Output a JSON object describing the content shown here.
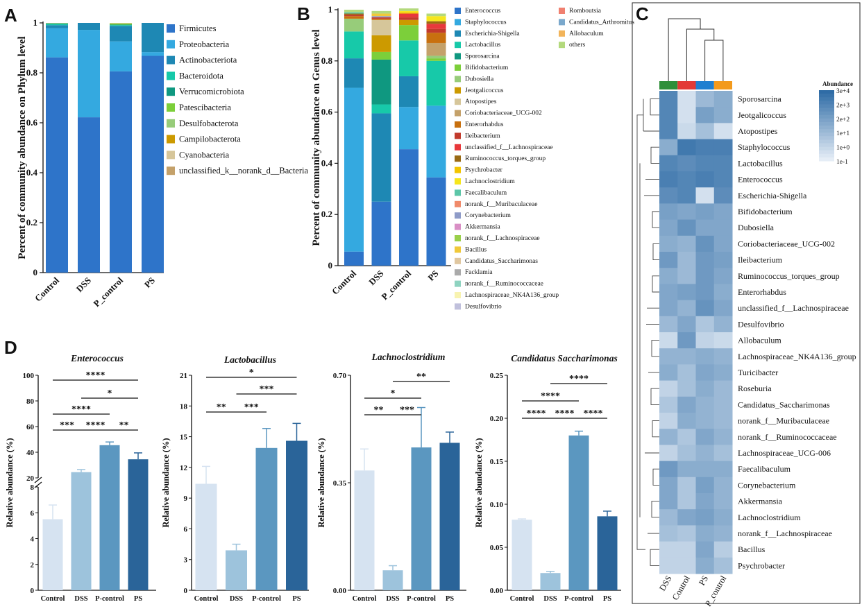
{
  "panels": {
    "A": "A",
    "B": "B",
    "C": "C",
    "D": "D"
  },
  "colors": {
    "firmicutes": "#2e74c9",
    "proteobacteria": "#34a9e0",
    "actinobacteriota": "#1e88b4",
    "bacteroidota": "#17c9a9",
    "verrucomicrobiota": "#0f9880",
    "patescibacteria": "#7ccf3a",
    "desulfobacterota": "#97cc7a",
    "campilobacterota": "#cc9a00",
    "cyanobacteria": "#d6c69a",
    "unclassified": "#c4a16a",
    "bar1": "#d6e3f1",
    "bar2": "#9dc3dc",
    "bar3": "#5b97c0",
    "bar4": "#2a6499",
    "heat_low": "#e5edf6",
    "heat_high": "#2f6ca6"
  },
  "chart_data": [
    {
      "id": "A",
      "type": "bar",
      "stacked": true,
      "title": "",
      "ylabel": "Percent of community abundance on Phylum level",
      "xlabel": "",
      "ylim": [
        0,
        1
      ],
      "yticks": [
        "0",
        "0.2",
        "0.4",
        "0.6",
        "0.8",
        "1"
      ],
      "categories": [
        "Control",
        "DSS",
        "P_control",
        "PS"
      ],
      "series": [
        {
          "name": "Firmicutes",
          "color": "#2e74c9",
          "values": [
            0.862,
            0.622,
            0.806,
            0.868
          ]
        },
        {
          "name": "Proteobacteria",
          "color": "#34a9e0",
          "values": [
            0.117,
            0.35,
            0.12,
            0.015
          ]
        },
        {
          "name": "Actinobacteriota",
          "color": "#1e88b4",
          "values": [
            0.012,
            0.028,
            0.062,
            0.117
          ]
        },
        {
          "name": "Bacteroidota",
          "color": "#17c9a9",
          "values": [
            0.004,
            0,
            0.003,
            0
          ]
        },
        {
          "name": "Verrucomicrobiota",
          "color": "#0f9880",
          "values": [
            0.003,
            0,
            0.002,
            0
          ]
        },
        {
          "name": "Patescibacteria",
          "color": "#7ccf3a",
          "values": [
            0.001,
            0,
            0.004,
            0
          ]
        },
        {
          "name": "Desulfobacterota",
          "color": "#97cc7a",
          "values": [
            0.001,
            0,
            0.001,
            0
          ]
        },
        {
          "name": "Campilobacterota",
          "color": "#cc9a00",
          "values": [
            0,
            0,
            0.001,
            0
          ]
        },
        {
          "name": "Cyanobacteria",
          "color": "#d6c69a",
          "values": [
            0,
            0,
            0.001,
            0
          ]
        },
        {
          "name": "unclassified_k__norank_d__Bacteria",
          "color": "#c4a16a",
          "values": [
            0,
            0,
            0,
            0
          ]
        }
      ]
    },
    {
      "id": "B",
      "type": "bar",
      "stacked": true,
      "title": "",
      "ylabel": "Percent of community abundance on Genus level",
      "xlabel": "",
      "ylim": [
        0,
        1
      ],
      "yticks": [
        "0",
        "0.2",
        "0.4",
        "0.6",
        "0.8",
        "1"
      ],
      "categories": [
        "Control",
        "DSS",
        "P_control",
        "PS"
      ],
      "series": [
        {
          "name": "Enterococcus",
          "color": "#2e74c9",
          "values": [
            0.055,
            0.25,
            0.455,
            0.345
          ]
        },
        {
          "name": "Staphylococcus",
          "color": "#34a9e0",
          "values": [
            0.64,
            0,
            0.165,
            0.28
          ]
        },
        {
          "name": "Escherichia-Shigella",
          "color": "#1e88b4",
          "values": [
            0.115,
            0.345,
            0.12,
            0
          ]
        },
        {
          "name": "Lactobacillus",
          "color": "#17c9a9",
          "values": [
            0.105,
            0.035,
            0.14,
            0.175
          ]
        },
        {
          "name": "Sporosarcina",
          "color": "#0f9880",
          "values": [
            0,
            0.175,
            0,
            0
          ]
        },
        {
          "name": "Bifidobacterium",
          "color": "#7ccf3a",
          "values": [
            0,
            0.03,
            0.06,
            0.01
          ]
        },
        {
          "name": "Dubosiella",
          "color": "#97cc7a",
          "values": [
            0.05,
            0,
            0,
            0.01
          ]
        },
        {
          "name": "Jeotgalicoccus",
          "color": "#cc9a00",
          "values": [
            0,
            0.065,
            0.02,
            0
          ]
        },
        {
          "name": "Atopostipes",
          "color": "#d6c69a",
          "values": [
            0,
            0.06,
            0,
            0
          ]
        },
        {
          "name": "Coriobacteriaceae_UCG-002",
          "color": "#c4a16a",
          "values": [
            0,
            0,
            0,
            0.05
          ]
        },
        {
          "name": "Enterorhabdus",
          "color": "#c8700f",
          "values": [
            0.01,
            0.005,
            0,
            0.04
          ]
        },
        {
          "name": "Ileibacterium",
          "color": "#c23a2c",
          "values": [
            0.005,
            0.005,
            0.01,
            0.015
          ]
        },
        {
          "name": "unclassified_f__Lachnospiraceae",
          "color": "#e8383b",
          "values": [
            0,
            0,
            0.015,
            0.02
          ]
        },
        {
          "name": "Ruminococcus_torques_group",
          "color": "#9a6a14",
          "values": [
            0.005,
            0,
            0,
            0.01
          ]
        },
        {
          "name": "Psychrobacter",
          "color": "#f2c500",
          "values": [
            0,
            0,
            0.005,
            0
          ]
        },
        {
          "name": "Lachnoclostridium",
          "color": "#f6e61c",
          "values": [
            0,
            0,
            0.005,
            0.02
          ]
        },
        {
          "name": "Faecalibaculum",
          "color": "#5cc6a8",
          "values": [
            0.005,
            0,
            0,
            0
          ]
        },
        {
          "name": "norank_f__Muribaculaceae",
          "color": "#f08a6a",
          "values": [
            0,
            0,
            0,
            0
          ]
        },
        {
          "name": "Corynebacterium",
          "color": "#8e9bc8",
          "values": [
            0,
            0.005,
            0,
            0
          ]
        },
        {
          "name": "Akkermansia",
          "color": "#d98fc5",
          "values": [
            0,
            0,
            0,
            0
          ]
        },
        {
          "name": "norank_f__Lachnospiraceae",
          "color": "#9ad04a",
          "values": [
            0,
            0,
            0,
            0
          ]
        },
        {
          "name": "Bacillus",
          "color": "#f0c93a",
          "values": [
            0,
            0.01,
            0,
            0
          ]
        },
        {
          "name": "Candidatus_Saccharimonas",
          "color": "#e0c7a0",
          "values": [
            0,
            0,
            0,
            0
          ]
        },
        {
          "name": "Facklamia",
          "color": "#aaaaaa",
          "values": [
            0,
            0,
            0,
            0
          ]
        },
        {
          "name": "norank_f__Ruminococcaceae",
          "color": "#8ed3c0",
          "values": [
            0,
            0,
            0,
            0
          ]
        },
        {
          "name": "Lachnospiraceae_NK4A136_group",
          "color": "#f8f3b0",
          "values": [
            0,
            0,
            0,
            0
          ]
        },
        {
          "name": "Desulfovibrio",
          "color": "#c0c0dc",
          "values": [
            0,
            0,
            0,
            0
          ]
        },
        {
          "name": "Romboutsia",
          "color": "#f08070",
          "values": [
            0,
            0,
            0,
            0
          ]
        },
        {
          "name": "Candidatus_Arthromitus",
          "color": "#7aa8cc",
          "values": [
            0,
            0,
            0,
            0
          ]
        },
        {
          "name": "Allobaculum",
          "color": "#f2b45a",
          "values": [
            0,
            0,
            0,
            0
          ]
        },
        {
          "name": "others",
          "color": "#b3d97c",
          "values": [
            0.01,
            0.01,
            0.01,
            0.01
          ]
        }
      ]
    },
    {
      "id": "C",
      "type": "heatmap",
      "title": "",
      "legend_title": "Abundance",
      "legend_ticks": [
        "3e+4",
        "2e+3",
        "2e+2",
        "1e+1",
        "1e+0",
        "1e-1"
      ],
      "columns": [
        "DSS",
        "Control",
        "PS",
        "P_control"
      ],
      "column_colors": [
        "#2f8f3a",
        "#e33a36",
        "#1f7fd0",
        "#f39a1c"
      ],
      "rows": [
        "Sporosarcina",
        "Jeotgalicoccus",
        "Atopostipes",
        "Staphylococcus",
        "Lactobacillus",
        "Enterococcus",
        "Escherichia-Shigella",
        "Bifidobacterium",
        "Dubosiella",
        "Coriobacteriaceae_UCG-002",
        "Ileibacterium",
        "Ruminococcus_torques_group",
        "Enterorhabdus",
        "unclassified_f__Lachnospiraceae",
        "Desulfovibrio",
        "Allobaculum",
        "Lachnospiraceae_NK4A136_group",
        "Turicibacter",
        "Roseburia",
        "Candidatus_Saccharimonas",
        "norank_f__Muribaculaceae",
        "norank_f__Ruminococcaceae",
        "Lachnospiraceae_UCG-006",
        "Faecalibaculum",
        "Corynebacterium",
        "Akkermansia",
        "Lachnoclostridium",
        "norank_f__Lachnospiraceae",
        "Bacillus",
        "Psychrobacter"
      ],
      "values": [
        [
          0.8,
          0.1,
          0.4,
          0.5
        ],
        [
          0.8,
          0.1,
          0.6,
          0.5
        ],
        [
          0.8,
          0.15,
          0.35,
          0.1
        ],
        [
          0.5,
          0.9,
          0.85,
          0.85
        ],
        [
          0.8,
          0.75,
          0.8,
          0.8
        ],
        [
          0.85,
          0.8,
          0.85,
          0.8
        ],
        [
          0.75,
          0.8,
          0.1,
          0.75
        ],
        [
          0.6,
          0.55,
          0.6,
          0.55
        ],
        [
          0.55,
          0.7,
          0.55,
          0.55
        ],
        [
          0.5,
          0.45,
          0.7,
          0.55
        ],
        [
          0.65,
          0.4,
          0.65,
          0.6
        ],
        [
          0.5,
          0.4,
          0.65,
          0.55
        ],
        [
          0.55,
          0.6,
          0.65,
          0.5
        ],
        [
          0.55,
          0.45,
          0.7,
          0.55
        ],
        [
          0.4,
          0.55,
          0.3,
          0.45
        ],
        [
          0.15,
          0.65,
          0.2,
          0.15
        ],
        [
          0.45,
          0.45,
          0.5,
          0.45
        ],
        [
          0.5,
          0.35,
          0.55,
          0.5
        ],
        [
          0.2,
          0.35,
          0.5,
          0.4
        ],
        [
          0.3,
          0.55,
          0.45,
          0.4
        ],
        [
          0.2,
          0.5,
          0.45,
          0.4
        ],
        [
          0.45,
          0.3,
          0.55,
          0.45
        ],
        [
          0.2,
          0.35,
          0.45,
          0.35
        ],
        [
          0.65,
          0.5,
          0.5,
          0.5
        ],
        [
          0.55,
          0.3,
          0.6,
          0.45
        ],
        [
          0.55,
          0.3,
          0.55,
          0.45
        ],
        [
          0.4,
          0.55,
          0.6,
          0.5
        ],
        [
          0.35,
          0.3,
          0.5,
          0.45
        ],
        [
          0.2,
          0.2,
          0.55,
          0.25
        ],
        [
          0.2,
          0.2,
          0.5,
          0.35
        ]
      ]
    },
    {
      "id": "D1",
      "type": "bar",
      "title": "Enterococcus",
      "ylabel": "Relative abundance (%)",
      "categories": [
        "Control",
        "DSS",
        "P-control",
        "PS"
      ],
      "values": [
        5.5,
        24.5,
        45.5,
        34.5
      ],
      "errors": [
        1.1,
        2.0,
        2.5,
        5.0
      ],
      "broken_axis": {
        "lower": [
          0,
          8
        ],
        "upper": [
          20,
          100
        ]
      },
      "yticks_lower": [
        "0",
        "2",
        "4",
        "6",
        "8"
      ],
      "yticks_upper": [
        "20",
        "40",
        "60",
        "80",
        "100"
      ],
      "significance": [
        {
          "from": 0,
          "to": 1,
          "label": "***"
        },
        {
          "from": 1,
          "to": 2,
          "label": "****"
        },
        {
          "from": 2,
          "to": 3,
          "label": "**"
        },
        {
          "from": 0,
          "to": 2,
          "label": "****"
        },
        {
          "from": 1,
          "to": 3,
          "label": "*"
        },
        {
          "from": 0,
          "to": 3,
          "label": "****"
        }
      ]
    },
    {
      "id": "D2",
      "type": "bar",
      "title": "Lactobacillus",
      "ylabel": "Relative abundance (%)",
      "categories": [
        "Control",
        "DSS",
        "P-control",
        "PS"
      ],
      "values": [
        10.4,
        3.9,
        13.9,
        14.6
      ],
      "errors": [
        1.7,
        0.6,
        1.9,
        1.7
      ],
      "ylim": [
        0,
        21
      ],
      "yticks": [
        "0",
        "3",
        "6",
        "9",
        "12",
        "15",
        "18",
        "21"
      ],
      "significance": [
        {
          "from": 0,
          "to": 1,
          "label": "**"
        },
        {
          "from": 1,
          "to": 2,
          "label": "***"
        },
        {
          "from": 1,
          "to": 3,
          "label": "***"
        },
        {
          "from": 0,
          "to": 3,
          "label": "*"
        }
      ]
    },
    {
      "id": "D3",
      "type": "bar",
      "title": "Lachnoclostridium",
      "ylabel": "Relative abundance (%)",
      "categories": [
        "Control",
        "DSS",
        "P-control",
        "PS"
      ],
      "values": [
        0.39,
        0.065,
        0.465,
        0.48
      ],
      "errors": [
        0.07,
        0.015,
        0.13,
        0.035
      ],
      "ylim": [
        0,
        0.7
      ],
      "yticks": [
        "0.00",
        "0.35",
        "0.70"
      ],
      "significance": [
        {
          "from": 0,
          "to": 1,
          "label": "**"
        },
        {
          "from": 1,
          "to": 2,
          "label": "***"
        },
        {
          "from": 0,
          "to": 2,
          "label": "*"
        },
        {
          "from": 1,
          "to": 3,
          "label": "**"
        }
      ]
    },
    {
      "id": "D4",
      "type": "bar",
      "title": "Candidatus Saccharimonas",
      "ylabel": "Relative abundance (%)",
      "categories": [
        "Control",
        "DSS",
        "P-control",
        "PS"
      ],
      "values": [
        0.082,
        0.02,
        0.18,
        0.086
      ],
      "errors": [
        0.001,
        0.002,
        0.005,
        0.006
      ],
      "ylim": [
        0,
        0.25
      ],
      "yticks": [
        "0.00",
        "0.05",
        "0.10",
        "0.15",
        "0.20",
        "0.25"
      ],
      "significance": [
        {
          "from": 0,
          "to": 1,
          "label": "****"
        },
        {
          "from": 1,
          "to": 2,
          "label": "****"
        },
        {
          "from": 2,
          "to": 3,
          "label": "****"
        },
        {
          "from": 0,
          "to": 2,
          "label": "****"
        },
        {
          "from": 1,
          "to": 3,
          "label": "****"
        }
      ]
    }
  ]
}
